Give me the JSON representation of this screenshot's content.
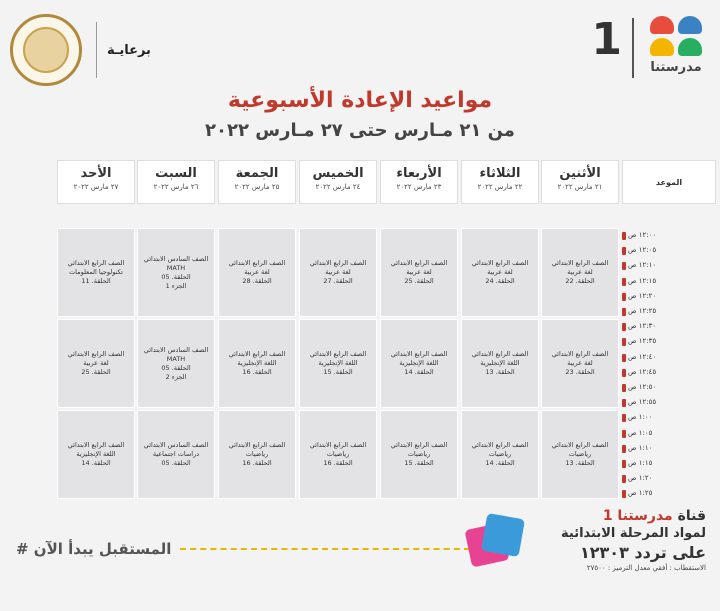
{
  "header": {
    "sponsor_label": "برعايـة",
    "brand_number": "1",
    "brand_name": "مدرستنا",
    "brand_colors": [
      "#e74c3c",
      "#3b82c4",
      "#f4b400",
      "#27ae60"
    ]
  },
  "title": "مواعيد الإعادة الأسبوعية",
  "subtitle": "من ٢١ مـارس حتى ٢٧ مـارس ٢٠٢٢",
  "time_header": "الموعد",
  "days": [
    {
      "name": "الأثنين",
      "date": "٢١ مارس ٢٠٢٢"
    },
    {
      "name": "الثلاثاء",
      "date": "٢٢ مارس ٢٠٢٢"
    },
    {
      "name": "الأربعاء",
      "date": "٢٣ مارس ٢٠٢٢"
    },
    {
      "name": "الخميس",
      "date": "٢٤ مارس ٢٠٢٢"
    },
    {
      "name": "الجمعة",
      "date": "٢٥ مارس ٢٠٢٢"
    },
    {
      "name": "السبت",
      "date": "٢٦ مارس ٢٠٢٢"
    },
    {
      "name": "الأحد",
      "date": "٢٧ مارس ٢٠٢٢"
    }
  ],
  "times": [
    "١٢:٠٠ ص",
    "١٢:٠٥ ص",
    "١٢:١٠ ص",
    "١٢:١٥ ص",
    "١٢:٢٠ ص",
    "١٢:٢٥ ص",
    "١٢:٣٠ ص",
    "١٢:٣٥ ص",
    "١٢:٤٠ ص",
    "١٢:٤٥ ص",
    "١٢:٥٠ ص",
    "١٢:٥٥ ص",
    "١:٠٠ ص",
    "١:٠٥ ص",
    "١:١٠ ص",
    "١:١٥ ص",
    "١:٢٠ ص",
    "١:٢٥ ص"
  ],
  "rows": [
    [
      [
        "الصف الرابع الابتدائي",
        "لغة عربية",
        "الحلقة. 22"
      ],
      [
        "الصف الرابع الابتدائي",
        "لغة عربية",
        "الحلقة. 24"
      ],
      [
        "الصف الرابع الابتدائي",
        "لغة عربية",
        "الحلقة. 25"
      ],
      [
        "الصف الرابع الابتدائي",
        "لغة عربية",
        "الحلقة. 27"
      ],
      [
        "الصف الرابع الابتدائي",
        "لغة عربية",
        "الحلقة. 28"
      ],
      [
        "الصف السادس الابتدائي",
        "MATH",
        "الحلقة. 05",
        "الجزء 1"
      ],
      [
        "الصف الرابع الابتدائي",
        "تكنولوجيا المعلومات",
        "الحلقة. 11"
      ]
    ],
    [
      [
        "الصف الرابع الابتدائي",
        "لغة عربية",
        "الحلقة. 23"
      ],
      [
        "الصف الرابع الابتدائي",
        "اللغة الإنجليزية",
        "الحلقة. 13"
      ],
      [
        "الصف الرابع الابتدائي",
        "اللغة الإنجليزية",
        "الحلقة. 14"
      ],
      [
        "الصف الرابع الابتدائي",
        "اللغة الإنجليزية",
        "الحلقة. 15"
      ],
      [
        "الصف الرابع الابتدائي",
        "اللغة الإنجليزية",
        "الحلقة. 16"
      ],
      [
        "الصف السادس الابتدائي",
        "MATH",
        "الحلقة. 05",
        "الجزء 2"
      ],
      [
        "الصف الرابع الابتدائي",
        "لغة عربية",
        "الحلقة. 25"
      ]
    ],
    [
      [
        "الصف الرابع الابتدائي",
        "رياضيات",
        "الحلقة. 13"
      ],
      [
        "الصف الرابع الابتدائي",
        "رياضيات",
        "الحلقة. 14"
      ],
      [
        "الصف الرابع الابتدائي",
        "رياضيات",
        "الحلقة. 15"
      ],
      [
        "الصف الرابع الابتدائي",
        "رياضيات",
        "الحلقة. 16"
      ],
      [
        "الصف الرابع الابتدائي",
        "رياضيات",
        "الحلقة. 16"
      ],
      [
        "الصف السادس الابتدائي",
        "دراسات اجتماعية",
        "الحلقة. 05"
      ],
      [
        "الصف الرابع الابتدائي",
        "اللغة الإنجليزية",
        "الحلقة. 14"
      ]
    ]
  ],
  "footer": {
    "slogan": "# المستقبل يبدأ الآن",
    "channel_prefix": "قناة",
    "channel_name": "مدرستنا 1",
    "channel_line2": "لمواد المرحلة الابتدائية",
    "channel_line3": "على تردد ١٢٣٠٣",
    "channel_line4": "الاستقطاب : أفقي معدل الترميز : ٢٧٥٠٠"
  }
}
